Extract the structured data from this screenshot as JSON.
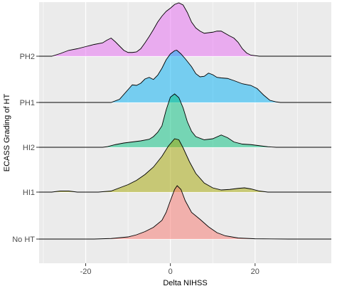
{
  "chart_data": {
    "type": "ridgeline",
    "xlabel": "Delta NIHSS",
    "ylabel": "ECASS Grading of HT",
    "xlim": [
      -31,
      38
    ],
    "x_ticks": [
      -20,
      0,
      20
    ],
    "x_tick_labels": [
      "-20",
      "0",
      "20"
    ],
    "grid": true,
    "legend": "none",
    "series": [
      {
        "name": "No HT",
        "color": "#F8766D",
        "points": [
          [
            -31,
            0.0
          ],
          [
            -25,
            0.0
          ],
          [
            -18,
            0.0
          ],
          [
            -14,
            0.01
          ],
          [
            -10,
            0.04
          ],
          [
            -8,
            0.08
          ],
          [
            -6,
            0.14
          ],
          [
            -4,
            0.22
          ],
          [
            -2,
            0.35
          ],
          [
            -1,
            0.5
          ],
          [
            0,
            0.72
          ],
          [
            1,
            0.93
          ],
          [
            1.6,
            1.0
          ],
          [
            2.5,
            0.93
          ],
          [
            3.5,
            0.72
          ],
          [
            5,
            0.5
          ],
          [
            7,
            0.37
          ],
          [
            9,
            0.23
          ],
          [
            11,
            0.12
          ],
          [
            13,
            0.06
          ],
          [
            16,
            0.02
          ],
          [
            20,
            0.005
          ],
          [
            28,
            0.0
          ],
          [
            38,
            0.0
          ]
        ]
      },
      {
        "name": "HI1",
        "color": "#A3A500",
        "points": [
          [
            -31,
            0.0
          ],
          [
            -28,
            0.0
          ],
          [
            -26,
            0.02
          ],
          [
            -24,
            0.02
          ],
          [
            -22,
            0.0
          ],
          [
            -17,
            0.0
          ],
          [
            -14,
            0.02
          ],
          [
            -12,
            0.08
          ],
          [
            -10,
            0.14
          ],
          [
            -8,
            0.22
          ],
          [
            -6,
            0.33
          ],
          [
            -4,
            0.47
          ],
          [
            -2,
            0.67
          ],
          [
            -0.5,
            0.86
          ],
          [
            1,
            1.0
          ],
          [
            2,
            0.98
          ],
          [
            3,
            0.83
          ],
          [
            4.5,
            0.57
          ],
          [
            6,
            0.35
          ],
          [
            8,
            0.17
          ],
          [
            10,
            0.08
          ],
          [
            12,
            0.04
          ],
          [
            14,
            0.05
          ],
          [
            16,
            0.07
          ],
          [
            17.5,
            0.08
          ],
          [
            19,
            0.06
          ],
          [
            21,
            0.02
          ],
          [
            23,
            0.0
          ],
          [
            38,
            0.0
          ]
        ]
      },
      {
        "name": "HI2",
        "color": "#00BF7D",
        "points": [
          [
            -31,
            0.0
          ],
          [
            -16,
            0.0
          ],
          [
            -15,
            0.01
          ],
          [
            -13,
            0.05
          ],
          [
            -11,
            0.08
          ],
          [
            -9,
            0.1
          ],
          [
            -7,
            0.12
          ],
          [
            -5,
            0.15
          ],
          [
            -4,
            0.2
          ],
          [
            -3,
            0.28
          ],
          [
            -2,
            0.4
          ],
          [
            -1,
            0.7
          ],
          [
            0,
            0.94
          ],
          [
            1,
            1.0
          ],
          [
            2,
            0.93
          ],
          [
            3,
            0.74
          ],
          [
            4,
            0.48
          ],
          [
            5,
            0.3
          ],
          [
            6,
            0.2
          ],
          [
            8,
            0.14
          ],
          [
            10,
            0.16
          ],
          [
            12,
            0.23
          ],
          [
            13.5,
            0.18
          ],
          [
            15,
            0.1
          ],
          [
            17,
            0.06
          ],
          [
            19,
            0.05
          ],
          [
            21,
            0.03
          ],
          [
            23,
            0.01
          ],
          [
            25,
            0.0
          ],
          [
            38,
            0.0
          ]
        ]
      },
      {
        "name": "PH1",
        "color": "#00B0F6",
        "points": [
          [
            -31,
            0.0
          ],
          [
            -14,
            0.0
          ],
          [
            -12,
            0.06
          ],
          [
            -10,
            0.24
          ],
          [
            -9,
            0.33
          ],
          [
            -8,
            0.32
          ],
          [
            -7,
            0.36
          ],
          [
            -6,
            0.44
          ],
          [
            -5,
            0.47
          ],
          [
            -4,
            0.43
          ],
          [
            -3,
            0.51
          ],
          [
            -2,
            0.64
          ],
          [
            -1,
            0.8
          ],
          [
            0,
            0.91
          ],
          [
            1,
            0.97
          ],
          [
            1.5,
            0.98
          ],
          [
            2.5,
            0.91
          ],
          [
            3.5,
            0.82
          ],
          [
            5,
            0.67
          ],
          [
            6,
            0.54
          ],
          [
            7,
            0.48
          ],
          [
            8,
            0.49
          ],
          [
            9,
            0.55
          ],
          [
            10,
            0.52
          ],
          [
            11,
            0.47
          ],
          [
            12,
            0.46
          ],
          [
            13.5,
            0.45
          ],
          [
            15,
            0.41
          ],
          [
            17,
            0.35
          ],
          [
            19,
            0.32
          ],
          [
            20.5,
            0.26
          ],
          [
            22,
            0.14
          ],
          [
            23.5,
            0.04
          ],
          [
            25,
            0.01
          ],
          [
            26,
            0.0
          ],
          [
            38,
            0.0
          ]
        ]
      },
      {
        "name": "PH2",
        "color": "#E76BF3",
        "points": [
          [
            -31,
            0.0
          ],
          [
            -28,
            0.0
          ],
          [
            -26,
            0.05
          ],
          [
            -24,
            0.11
          ],
          [
            -22,
            0.14
          ],
          [
            -20,
            0.18
          ],
          [
            -18,
            0.22
          ],
          [
            -16,
            0.25
          ],
          [
            -15,
            0.3
          ],
          [
            -14,
            0.34
          ],
          [
            -13,
            0.27
          ],
          [
            -12,
            0.19
          ],
          [
            -11,
            0.11
          ],
          [
            -10,
            0.07
          ],
          [
            -9,
            0.07
          ],
          [
            -8,
            0.08
          ],
          [
            -7,
            0.14
          ],
          [
            -6,
            0.25
          ],
          [
            -5,
            0.37
          ],
          [
            -4,
            0.5
          ],
          [
            -3,
            0.64
          ],
          [
            -2,
            0.75
          ],
          [
            -1,
            0.84
          ],
          [
            0,
            0.9
          ],
          [
            1,
            0.97
          ],
          [
            2,
            1.0
          ],
          [
            3,
            0.96
          ],
          [
            4,
            0.82
          ],
          [
            5,
            0.64
          ],
          [
            6,
            0.53
          ],
          [
            7,
            0.47
          ],
          [
            8,
            0.43
          ],
          [
            10,
            0.45
          ],
          [
            11,
            0.47
          ],
          [
            12,
            0.47
          ],
          [
            14,
            0.38
          ],
          [
            15,
            0.34
          ],
          [
            16,
            0.26
          ],
          [
            17,
            0.14
          ],
          [
            18,
            0.06
          ],
          [
            19,
            0.02
          ],
          [
            21,
            0.0
          ],
          [
            38,
            0.0
          ]
        ]
      }
    ]
  }
}
